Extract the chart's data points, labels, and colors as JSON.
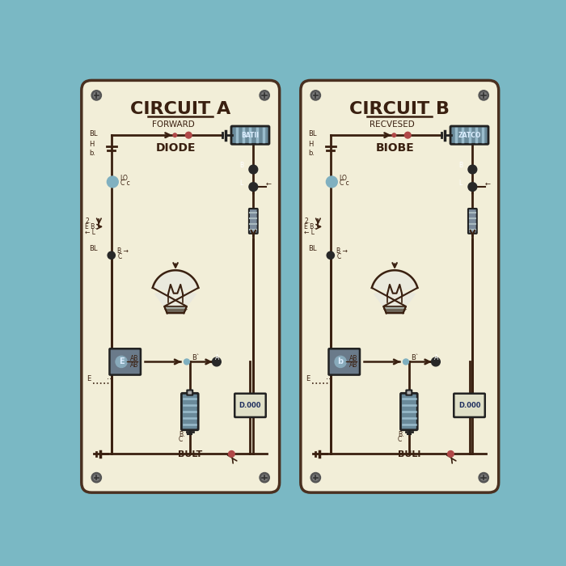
{
  "bg_color": "#7ab8c4",
  "panel_color": "#f2eed8",
  "panel_border": "#4a3020",
  "text_color": "#3a2010",
  "title_A": "CIRCUIT A",
  "title_B": "CIRCUIT B",
  "label_A": "FORWARD",
  "label_B": "RECVESED",
  "diode_label_A": "DIODE",
  "diode_label_B": "BIOBE",
  "bulb_label_A": "BULT",
  "bulb_label_B": "BULI",
  "battery_color": "#6a8a9a",
  "wire_color": "#3a2010",
  "dot_red": "#b04848",
  "dot_blue": "#80b0c0",
  "dot_dark": "#282828",
  "font_title": 16,
  "font_label": 8,
  "font_small": 6,
  "panel_A": [
    15,
    18,
    318,
    662
  ],
  "panel_B": [
    367,
    18,
    318,
    662
  ]
}
